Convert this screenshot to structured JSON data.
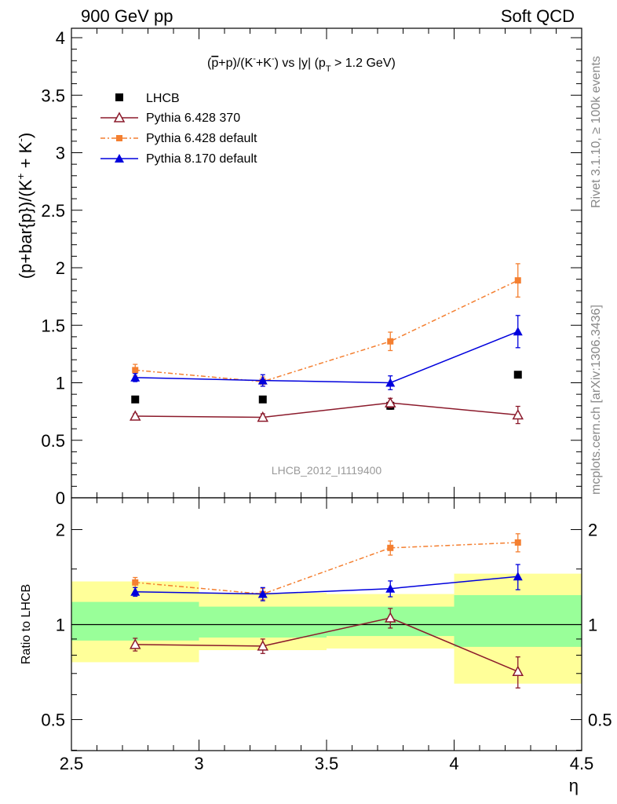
{
  "header": {
    "left": "900 GeV pp",
    "right": "Soft QCD"
  },
  "side_labels": {
    "rivet": "Rivet 3.1.10, ≥ 100k events",
    "mcplots": "mcplots.cern.ch [arXiv:1306.3436]"
  },
  "watermark": "LHCB_2012_I1119400",
  "colors": {
    "lhcb": "#000000",
    "py6_370": "#8b1a2b",
    "py6_default": "#f47f30",
    "py8_default": "#0000dd",
    "band_inner": "#99ff99",
    "band_outer": "#ffff99"
  },
  "chart_data": [
    {
      "type": "scatter",
      "panel": "main",
      "title_parts": {
        "a": "(",
        "p": "p",
        "b": "+p)/(K",
        "sup1": "-",
        "c": "+K",
        "sup2": "-",
        "d": ") vs |y| (p",
        "sub": "T",
        "e": " > 1.2 GeV)"
      },
      "ylabel_parts": {
        "a": "(p+bar{p})/(K",
        "sup1": "+",
        "b": " + K",
        "sup2": "-",
        "c": ")"
      },
      "x": [
        2.75,
        3.25,
        3.75,
        4.25
      ],
      "xlim": [
        2.5,
        4.5
      ],
      "ylim": [
        0,
        4
      ],
      "y_ticks": [
        "0",
        "0.5",
        "1",
        "1.5",
        "2",
        "2.5",
        "3",
        "3.5",
        "4"
      ],
      "legend_position": "top-left",
      "series": [
        {
          "name": "LHCB",
          "values": [
            0.855,
            0.855,
            0.8,
            1.07
          ],
          "errors": [
            0.01,
            0.01,
            0.03,
            0.02
          ]
        },
        {
          "name": "Pythia 6.428 370",
          "values": [
            0.71,
            0.7,
            0.825,
            0.72
          ],
          "errors": [
            0.02,
            0.03,
            0.04,
            0.075
          ]
        },
        {
          "name": "Pythia 6.428 default",
          "values": [
            1.11,
            1.01,
            1.36,
            1.89
          ],
          "errors": [
            0.05,
            0.04,
            0.08,
            0.145
          ]
        },
        {
          "name": "Pythia 8.170 default",
          "values": [
            1.045,
            1.02,
            1.0,
            1.445
          ],
          "errors": [
            0.035,
            0.05,
            0.06,
            0.14
          ]
        }
      ]
    },
    {
      "type": "scatter",
      "panel": "ratio",
      "ylabel": "Ratio to LHCB",
      "xlabel": "η",
      "x": [
        2.75,
        3.25,
        3.75,
        4.25
      ],
      "xlim": [
        2.5,
        4.5
      ],
      "ylim": [
        0.35,
        2.35
      ],
      "x_ticks": [
        "2.5",
        "3",
        "3.5",
        "4",
        "4.5"
      ],
      "y_ticks": [
        "0.5",
        "1",
        "2"
      ],
      "bands": [
        {
          "x0": 2.5,
          "x1": 3.0,
          "inner": [
            0.89,
            1.18
          ],
          "outer": [
            0.76,
            1.37
          ]
        },
        {
          "x0": 3.0,
          "x1": 3.5,
          "inner": [
            0.91,
            1.14
          ],
          "outer": [
            0.83,
            1.26
          ]
        },
        {
          "x0": 3.5,
          "x1": 4.0,
          "inner": [
            0.92,
            1.14
          ],
          "outer": [
            0.84,
            1.25
          ]
        },
        {
          "x0": 4.0,
          "x1": 4.5,
          "inner": [
            0.85,
            1.24
          ],
          "outer": [
            0.65,
            1.45
          ]
        }
      ],
      "series": [
        {
          "name": "Pythia 6.428 370",
          "values": [
            0.865,
            0.855,
            1.05,
            0.71
          ],
          "errors": [
            0.04,
            0.045,
            0.075,
            0.08
          ]
        },
        {
          "name": "Pythia 6.428 default",
          "values": [
            1.36,
            1.25,
            1.75,
            1.82
          ],
          "errors": [
            0.05,
            0.05,
            0.09,
            0.12
          ]
        },
        {
          "name": "Pythia 8.170 default",
          "values": [
            1.27,
            1.25,
            1.3,
            1.42
          ],
          "errors": [
            0.04,
            0.06,
            0.075,
            0.13
          ]
        }
      ]
    }
  ]
}
